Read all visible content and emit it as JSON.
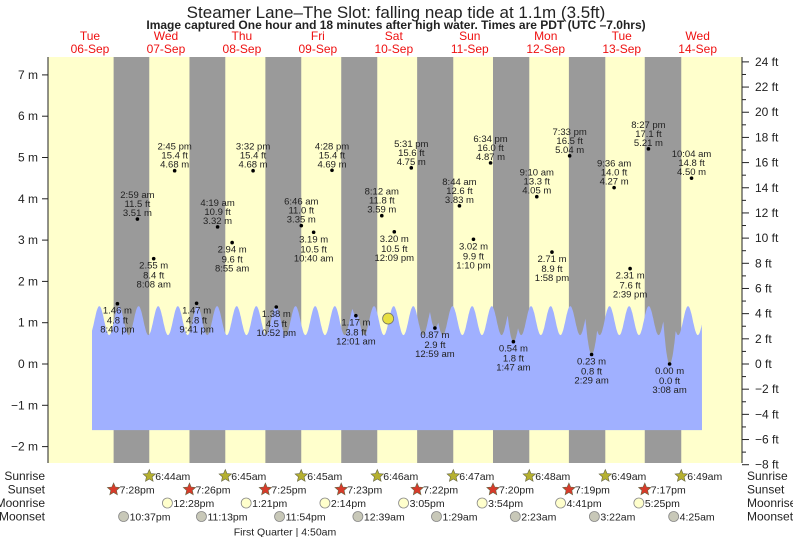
{
  "chart_data": {
    "type": "area",
    "title": "Steamer Lane–The Slot: falling  neap tide at 1.1m (3.5ft)",
    "subtitle": "Image captured One hour and 18 minutes after high water. Times are PDT (UTC –7.0hrs)",
    "current_level_m": 1.1,
    "days": [
      {
        "name": "Tue",
        "date": "06-Sep"
      },
      {
        "name": "Wed",
        "date": "07-Sep"
      },
      {
        "name": "Thu",
        "date": "08-Sep"
      },
      {
        "name": "Fri",
        "date": "09-Sep"
      },
      {
        "name": "Sat",
        "date": "10-Sep"
      },
      {
        "name": "Sun",
        "date": "11-Sep"
      },
      {
        "name": "Mon",
        "date": "12-Sep"
      },
      {
        "name": "Tue",
        "date": "13-Sep"
      },
      {
        "name": "Wed",
        "date": "14-Sep"
      }
    ],
    "y_left": {
      "unit": "m",
      "ylim": [
        -2,
        7
      ],
      "ticks": [
        "7 m",
        "6 m",
        "5 m",
        "4 m",
        "3 m",
        "2 m",
        "1 m",
        "0 m",
        "−1 m",
        "−2 m"
      ]
    },
    "y_right": {
      "unit": "ft",
      "ylim": [
        -8,
        24
      ],
      "ticks": [
        "24 ft",
        "22 ft",
        "20 ft",
        "18 ft",
        "16 ft",
        "14 ft",
        "12 ft",
        "10 ft",
        "8 ft",
        "6 ft",
        "4 ft",
        "2 ft",
        "0 ft",
        "−2 ft",
        "−4 ft",
        "−6 ft",
        "−8 ft"
      ]
    },
    "extremes": [
      {
        "date": "06-Sep",
        "time": "8:40 pm",
        "m": "1.46 m",
        "ft": "4.8 ft",
        "type": "low"
      },
      {
        "date": "07-Sep",
        "time": "2:59 am",
        "m": "3.51 m",
        "ft": "11.5 ft",
        "type": "high"
      },
      {
        "date": "07-Sep",
        "time": "8:08 am",
        "m": "2.55 m",
        "ft": "8.4 ft",
        "type": "low"
      },
      {
        "date": "07-Sep",
        "time": "2:45 pm",
        "m": "4.68 m",
        "ft": "15.4 ft",
        "type": "high"
      },
      {
        "date": "07-Sep",
        "time": "9:41 pm",
        "m": "1.47 m",
        "ft": "4.8 ft",
        "type": "low"
      },
      {
        "date": "08-Sep",
        "time": "4:19 am",
        "m": "3.32 m",
        "ft": "10.9 ft",
        "type": "high"
      },
      {
        "date": "08-Sep",
        "time": "8:55 am",
        "m": "2.94 m",
        "ft": "9.6 ft",
        "type": "low"
      },
      {
        "date": "08-Sep",
        "time": "3:32 pm",
        "m": "4.68 m",
        "ft": "15.4 ft",
        "type": "high"
      },
      {
        "date": "08-Sep",
        "time": "10:52 pm",
        "m": "1.38 m",
        "ft": "4.5 ft",
        "type": "low"
      },
      {
        "date": "09-Sep",
        "time": "6:46 am",
        "m": "3.35 m",
        "ft": "11.0 ft",
        "type": "high"
      },
      {
        "date": "09-Sep",
        "time": "10:40 am",
        "m": "3.19 m",
        "ft": "10.5 ft",
        "type": "low"
      },
      {
        "date": "09-Sep",
        "time": "4:28 pm",
        "m": "4.69 m",
        "ft": "15.4 ft",
        "type": "high"
      },
      {
        "date": "10-Sep",
        "time": "12:01 am",
        "m": "1.17 m",
        "ft": "3.8 ft",
        "type": "low"
      },
      {
        "date": "10-Sep",
        "time": "8:12 am",
        "m": "3.59 m",
        "ft": "11.8 ft",
        "type": "high"
      },
      {
        "date": "10-Sep",
        "time": "12:09 pm",
        "m": "3.20 m",
        "ft": "10.5 ft",
        "type": "low"
      },
      {
        "date": "10-Sep",
        "time": "5:31 pm",
        "m": "4.75 m",
        "ft": "15.6 ft",
        "type": "high"
      },
      {
        "date": "11-Sep",
        "time": "12:59 am",
        "m": "0.87 m",
        "ft": "2.9 ft",
        "type": "low"
      },
      {
        "date": "11-Sep",
        "time": "8:44 am",
        "m": "3.83 m",
        "ft": "12.6 ft",
        "type": "high"
      },
      {
        "date": "11-Sep",
        "time": "1:10 pm",
        "m": "3.02 m",
        "ft": "9.9 ft",
        "type": "low"
      },
      {
        "date": "11-Sep",
        "time": "6:34 pm",
        "m": "4.87 m",
        "ft": "16.0 ft",
        "type": "high"
      },
      {
        "date": "12-Sep",
        "time": "1:47 am",
        "m": "0.54 m",
        "ft": "1.8 ft",
        "type": "low"
      },
      {
        "date": "12-Sep",
        "time": "9:10 am",
        "m": "4.05 m",
        "ft": "13.3 ft",
        "type": "high"
      },
      {
        "date": "12-Sep",
        "time": "1:58 pm",
        "m": "2.71 m",
        "ft": "8.9 ft",
        "type": "low"
      },
      {
        "date": "12-Sep",
        "time": "7:33 pm",
        "m": "5.04 m",
        "ft": "16.5 ft",
        "type": "high"
      },
      {
        "date": "13-Sep",
        "time": "2:29 am",
        "m": "0.23 m",
        "ft": "0.8 ft",
        "type": "low"
      },
      {
        "date": "13-Sep",
        "time": "9:36 am",
        "m": "4.27 m",
        "ft": "14.0 ft",
        "type": "high"
      },
      {
        "date": "13-Sep",
        "time": "2:39 pm",
        "m": "2.31 m",
        "ft": "7.6 ft",
        "type": "low"
      },
      {
        "date": "13-Sep",
        "time": "8:27 pm",
        "m": "5.21 m",
        "ft": "17.1 ft",
        "type": "high"
      },
      {
        "date": "14-Sep",
        "time": "3:08 am",
        "m": "0.00 m",
        "ft": "0.0 ft",
        "type": "low"
      },
      {
        "date": "14-Sep",
        "time": "10:04 am",
        "m": "4.50 m",
        "ft": "14.8 ft",
        "type": "high"
      }
    ],
    "events": {
      "sunrise": {
        "label": "Sunrise",
        "items": [
          {
            "date": "07-Sep",
            "time": "6:44am"
          },
          {
            "date": "08-Sep",
            "time": "6:45am"
          },
          {
            "date": "09-Sep",
            "time": "6:45am"
          },
          {
            "date": "10-Sep",
            "time": "6:46am"
          },
          {
            "date": "11-Sep",
            "time": "6:47am"
          },
          {
            "date": "12-Sep",
            "time": "6:48am"
          },
          {
            "date": "13-Sep",
            "time": "6:49am"
          },
          {
            "date": "14-Sep",
            "time": "6:49am"
          }
        ]
      },
      "sunset": {
        "label": "Sunset",
        "items": [
          {
            "date": "06-Sep",
            "time": "7:28pm"
          },
          {
            "date": "07-Sep",
            "time": "7:26pm"
          },
          {
            "date": "08-Sep",
            "time": "7:25pm"
          },
          {
            "date": "09-Sep",
            "time": "7:23pm"
          },
          {
            "date": "10-Sep",
            "time": "7:22pm"
          },
          {
            "date": "11-Sep",
            "time": "7:20pm"
          },
          {
            "date": "12-Sep",
            "time": "7:19pm"
          },
          {
            "date": "13-Sep",
            "time": "7:17pm"
          }
        ]
      },
      "moonrise": {
        "label": "Moonrise",
        "items": [
          {
            "date": "07-Sep",
            "time": "12:28pm"
          },
          {
            "date": "08-Sep",
            "time": "1:21pm"
          },
          {
            "date": "09-Sep",
            "time": "2:14pm"
          },
          {
            "date": "10-Sep",
            "time": "3:05pm"
          },
          {
            "date": "11-Sep",
            "time": "3:54pm"
          },
          {
            "date": "12-Sep",
            "time": "4:41pm"
          },
          {
            "date": "13-Sep",
            "time": "5:25pm"
          }
        ]
      },
      "moonset": {
        "label": "Moonset",
        "items": [
          {
            "date": "06-Sep",
            "time": "10:37pm"
          },
          {
            "date": "07-Sep",
            "time": "11:13pm"
          },
          {
            "date": "08-Sep",
            "time": "11:54pm"
          },
          {
            "date": "10-Sep",
            "time": "12:39am"
          },
          {
            "date": "11-Sep",
            "time": "1:29am"
          },
          {
            "date": "12-Sep",
            "time": "2:23am"
          },
          {
            "date": "13-Sep",
            "time": "3:22am"
          },
          {
            "date": "14-Sep",
            "time": "4:25am"
          }
        ]
      }
    },
    "moon_phase": "First Quarter | 4:50am",
    "colors": {
      "day": "#ffffcc",
      "night": "#9a9a9a",
      "water": "#a0b0ff",
      "day_label": "#ee1111",
      "sunrise": "#b5b030",
      "sunset": "#d83a2a",
      "moonrise": "#ffffcc",
      "moonset": "#c8c8b8",
      "current_marker": "#e8e040"
    }
  }
}
